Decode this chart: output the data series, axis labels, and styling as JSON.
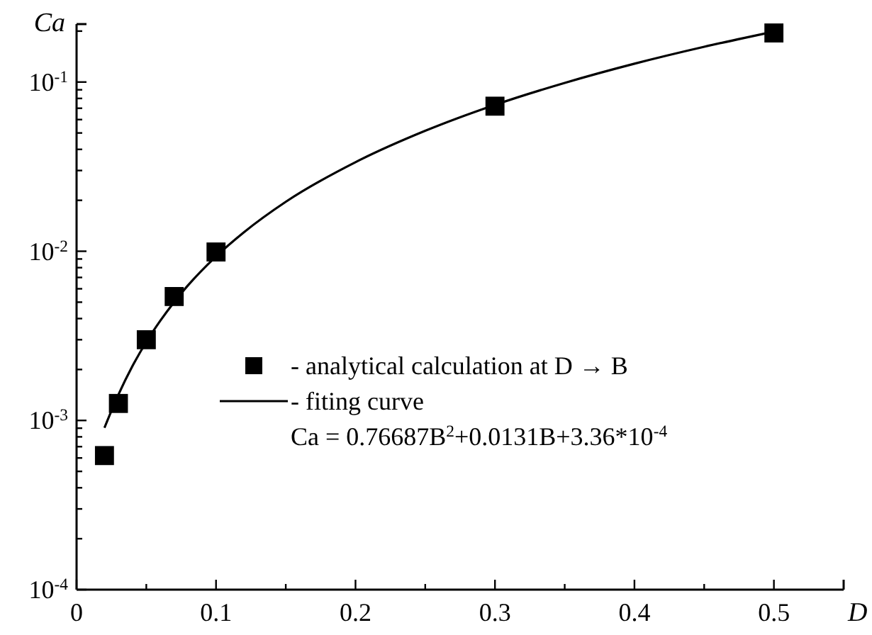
{
  "chart_data": {
    "type": "scatter",
    "xlabel": "D",
    "ylabel": "Ca",
    "log": "y",
    "grid": false,
    "legend": "bottom left",
    "xlim": [
      0,
      0.55
    ],
    "xticks": [
      0,
      {
        "value": 0.05,
        "label": null
      },
      0.1,
      {
        "value": 0.15,
        "label": null
      },
      0.2,
      {
        "value": 0.25,
        "label": null
      },
      0.3,
      {
        "value": 0.35,
        "label": null
      },
      0.4,
      {
        "value": 0.45,
        "label": null
      },
      0.5
    ],
    "ylim": [
      0.0001,
      0.22
    ],
    "yticks": [
      {
        "value": 0.0001,
        "label": "10$^{-4}$"
      },
      {
        "value": 0.0002,
        "label": null
      },
      {
        "value": 0.0003,
        "label": null
      },
      {
        "value": 0.0004,
        "label": null
      },
      {
        "value": 0.0005,
        "label": null
      },
      {
        "value": 0.0006,
        "label": null
      },
      {
        "value": 0.0007,
        "label": null
      },
      {
        "value": 0.0008,
        "label": null
      },
      {
        "value": 0.0009,
        "label": null
      },
      {
        "value": 0.001,
        "label": "10$^{-3}$"
      },
      {
        "value": 0.002,
        "label": null
      },
      {
        "value": 0.003,
        "label": null
      },
      {
        "value": 0.004,
        "label": null
      },
      {
        "value": 0.005,
        "label": null
      },
      {
        "value": 0.006,
        "label": null
      },
      {
        "value": 0.007,
        "label": null
      },
      {
        "value": 0.008,
        "label": null
      },
      {
        "value": 0.009,
        "label": null
      },
      {
        "value": 0.01,
        "label": "10$^{-2}$"
      },
      {
        "value": 0.02,
        "label": null
      },
      {
        "value": 0.03,
        "label": null
      },
      {
        "value": 0.04,
        "label": null
      },
      {
        "value": 0.05,
        "label": null
      },
      {
        "value": 0.06,
        "label": null
      },
      {
        "value": 0.07,
        "label": null
      },
      {
        "value": 0.08,
        "label": null
      },
      {
        "value": 0.09,
        "label": null
      },
      {
        "value": 0.1,
        "label": "10$^{-1}$"
      },
      {
        "value": 0.2,
        "label": null
      }
    ],
    "series": [
      {
        "name": "- analytical calculation at D → B",
        "marker": "square",
        "color": "#000000",
        "x": [
          0.02,
          0.03,
          0.05,
          0.07,
          0.1,
          0.3,
          0.5
        ],
        "values": [
          0.00062,
          0.00126,
          0.003,
          0.0054,
          0.0099,
          0.072,
          0.195
        ]
      },
      {
        "name": "- fiting curve",
        "type": "line",
        "marker": "none",
        "line_style": "solid",
        "color": "#000000",
        "x": [
          0.02,
          0.03,
          0.04,
          0.05,
          0.06,
          0.07,
          0.08,
          0.1,
          0.12,
          0.15,
          0.2,
          0.25,
          0.3,
          0.35,
          0.4,
          0.45,
          0.5
        ],
        "values": [
          0.000905,
          0.00142,
          0.00209,
          0.00291,
          0.00388,
          0.00501,
          0.0063,
          0.00932,
          0.01295,
          0.0196,
          0.0336,
          0.0515,
          0.0733,
          0.0988,
          0.1283,
          0.1615,
          0.1986
        ]
      }
    ],
    "annotations": [
      "Ca = 0.76687B$^{2}$+0.0131B+3.36*10$^{-4}$"
    ]
  }
}
